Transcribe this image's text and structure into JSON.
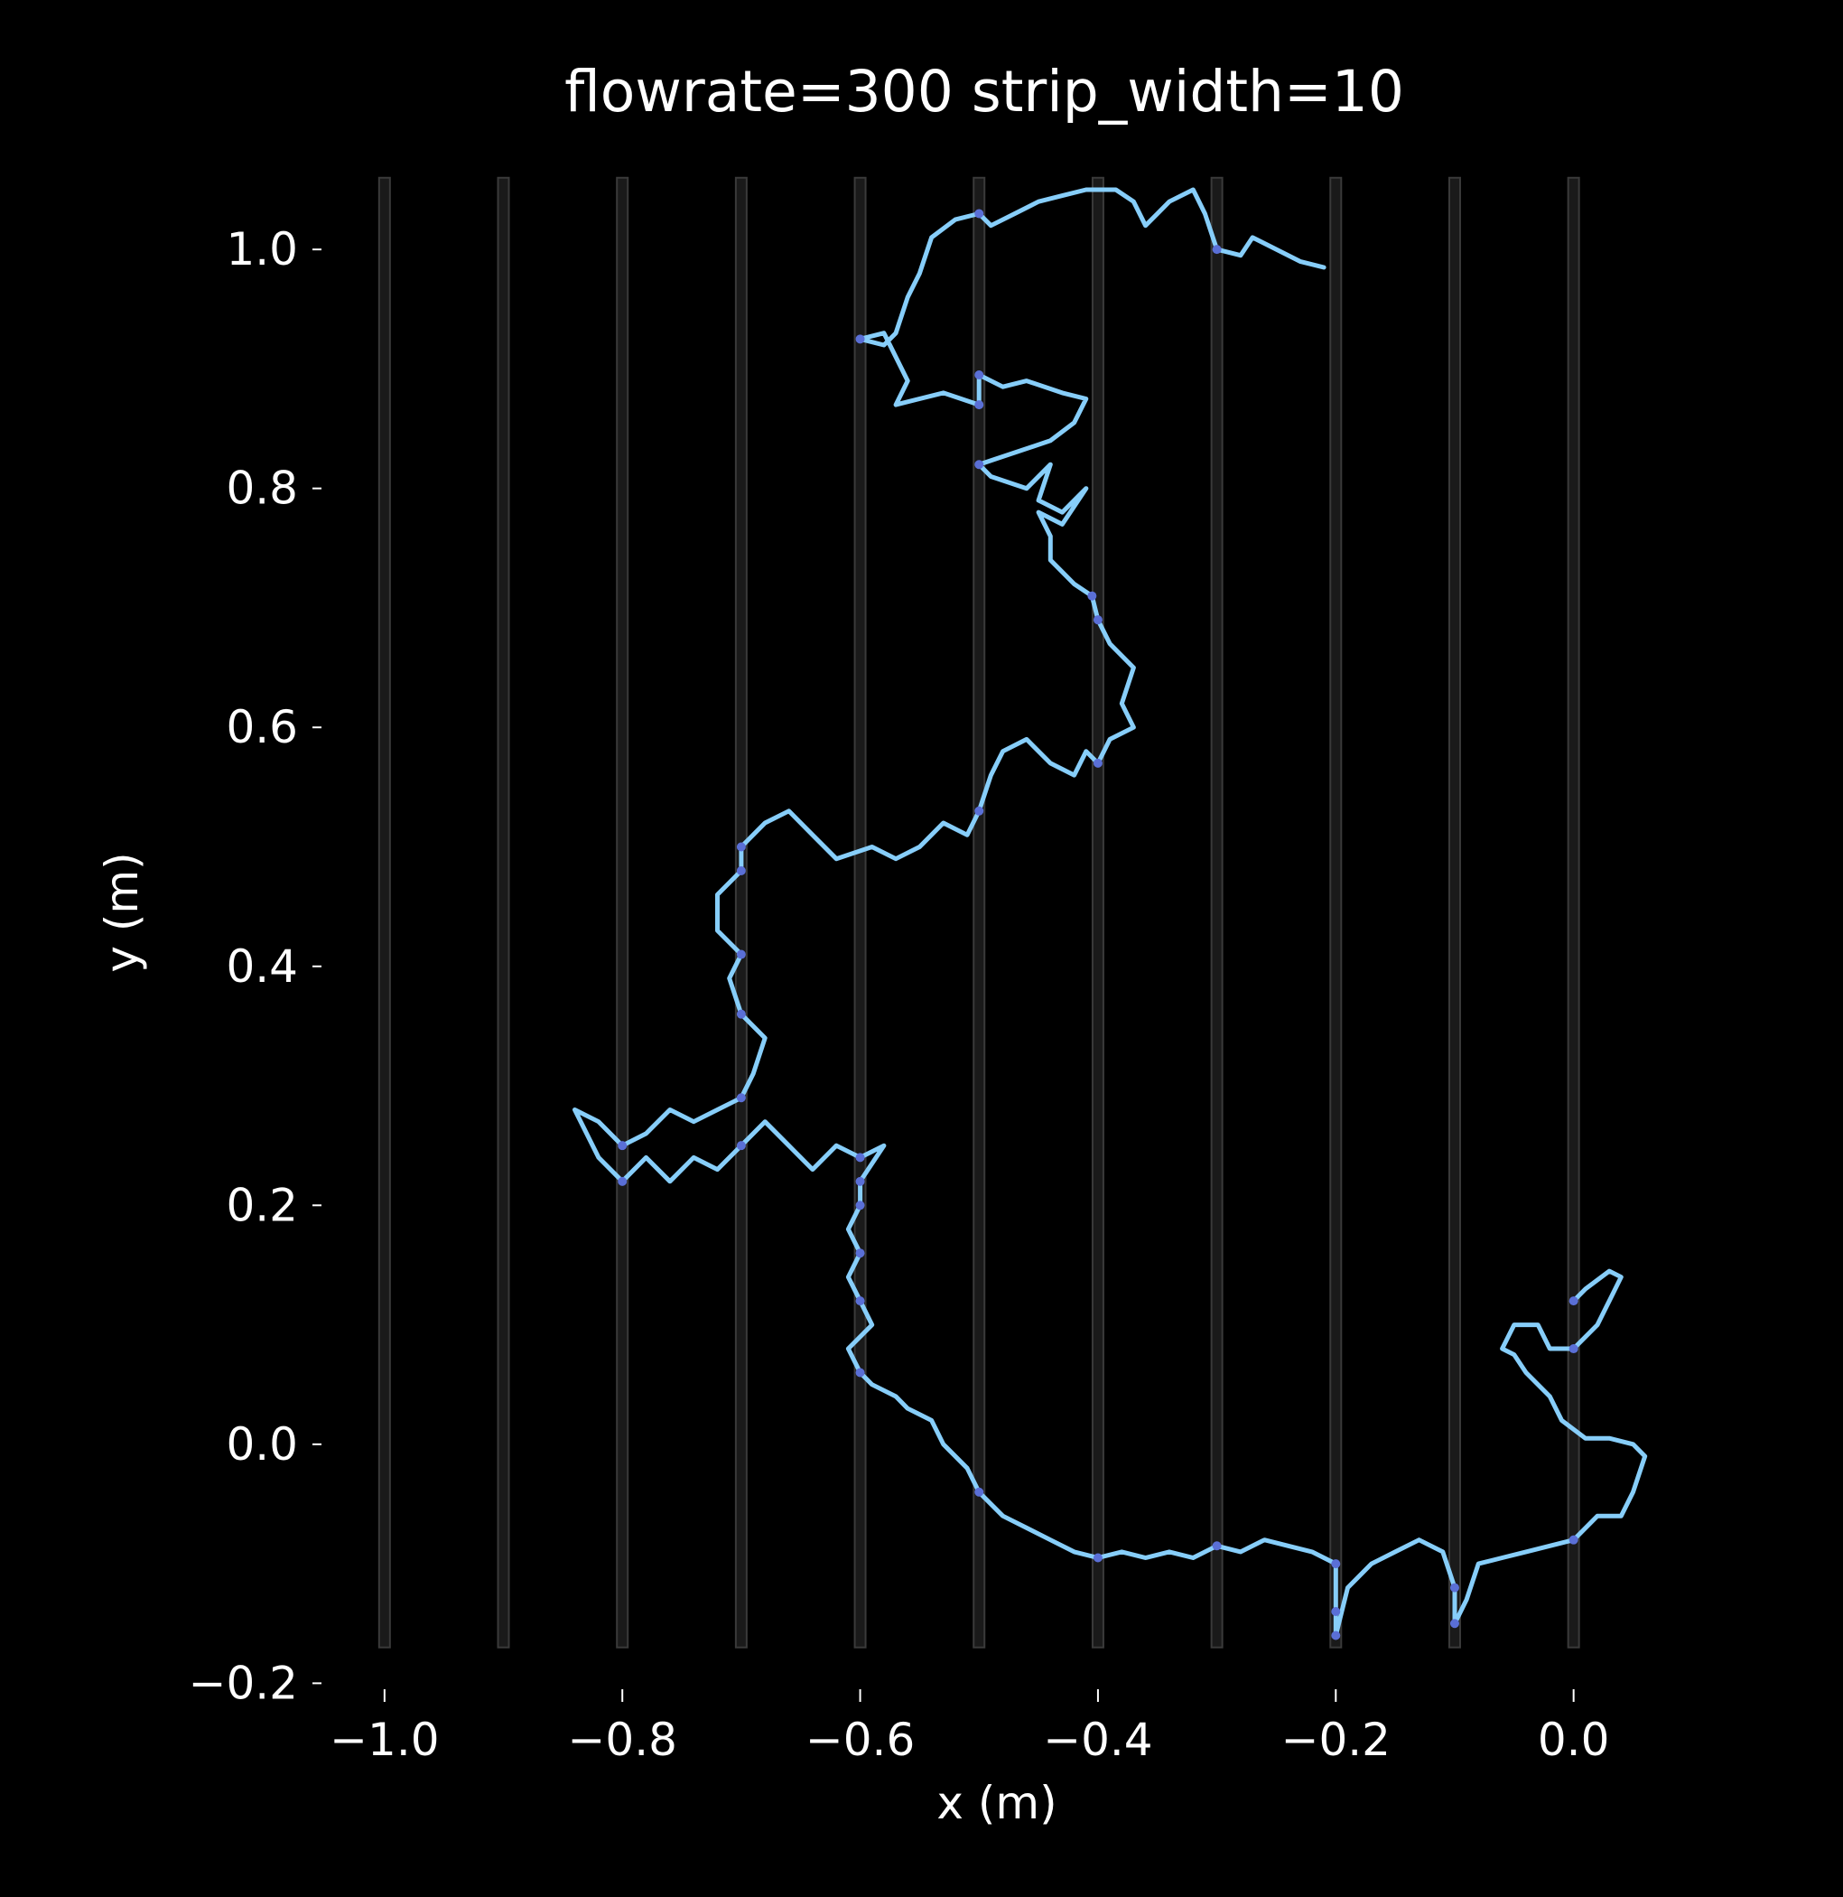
{
  "chart_data": {
    "type": "line",
    "title": "flowrate=300 strip_width=10",
    "xlabel": "x (m)",
    "ylabel": "y (m)",
    "xlim": [
      -1.05,
      0.08
    ],
    "ylim": [
      -0.205,
      1.05
    ],
    "xticks": [
      -1.0,
      -0.8,
      -0.6,
      -0.4,
      -0.2,
      0.0
    ],
    "xtick_labels": [
      "−1.0",
      "−0.8",
      "−0.6",
      "−0.4",
      "−0.2",
      "0.0"
    ],
    "yticks": [
      -0.2,
      0.0,
      0.2,
      0.4,
      0.6,
      0.8,
      1.0
    ],
    "ytick_labels": [
      "−0.2",
      "0.0",
      "0.2",
      "0.4",
      "0.6",
      "0.8",
      "1.0"
    ],
    "grid": false,
    "strips": {
      "x": [
        -1.0,
        -0.9,
        -0.8,
        -0.7,
        -0.6,
        -0.5,
        -0.4,
        -0.3,
        -0.2,
        -0.1,
        0.0
      ],
      "y_range": [
        -0.17,
        1.06
      ],
      "color": "#3a3a3a"
    },
    "series": [
      {
        "color": "#87cefa",
        "highlight_color": "#5a6fd6",
        "points": [
          [
            -0.21,
            0.985
          ],
          [
            -0.23,
            0.99
          ],
          [
            -0.25,
            1.0
          ],
          [
            -0.27,
            1.01
          ],
          [
            -0.28,
            0.995
          ],
          [
            -0.3,
            1.0
          ],
          [
            -0.31,
            1.03
          ],
          [
            -0.32,
            1.05
          ],
          [
            -0.34,
            1.04
          ],
          [
            -0.35,
            1.03
          ],
          [
            -0.36,
            1.02
          ],
          [
            -0.37,
            1.04
          ],
          [
            -0.385,
            1.05
          ],
          [
            -0.41,
            1.05
          ],
          [
            -0.43,
            1.045
          ],
          [
            -0.45,
            1.04
          ],
          [
            -0.47,
            1.03
          ],
          [
            -0.49,
            1.02
          ],
          [
            -0.5,
            1.03
          ],
          [
            -0.52,
            1.025
          ],
          [
            -0.54,
            1.01
          ],
          [
            -0.55,
            0.98
          ],
          [
            -0.56,
            0.96
          ],
          [
            -0.57,
            0.93
          ],
          [
            -0.58,
            0.92
          ],
          [
            -0.6,
            0.925
          ],
          [
            -0.58,
            0.93
          ],
          [
            -0.57,
            0.91
          ],
          [
            -0.56,
            0.89
          ],
          [
            -0.57,
            0.87
          ],
          [
            -0.53,
            0.88
          ],
          [
            -0.5,
            0.87
          ],
          [
            -0.5,
            0.895
          ],
          [
            -0.48,
            0.885
          ],
          [
            -0.46,
            0.89
          ],
          [
            -0.43,
            0.88
          ],
          [
            -0.41,
            0.875
          ],
          [
            -0.42,
            0.855
          ],
          [
            -0.44,
            0.84
          ],
          [
            -0.47,
            0.83
          ],
          [
            -0.5,
            0.82
          ],
          [
            -0.49,
            0.81
          ],
          [
            -0.46,
            0.8
          ],
          [
            -0.44,
            0.82
          ],
          [
            -0.45,
            0.79
          ],
          [
            -0.43,
            0.78
          ],
          [
            -0.41,
            0.8
          ],
          [
            -0.43,
            0.77
          ],
          [
            -0.45,
            0.78
          ],
          [
            -0.44,
            0.76
          ],
          [
            -0.44,
            0.74
          ],
          [
            -0.42,
            0.72
          ],
          [
            -0.405,
            0.71
          ],
          [
            -0.4,
            0.69
          ],
          [
            -0.39,
            0.67
          ],
          [
            -0.37,
            0.65
          ],
          [
            -0.38,
            0.62
          ],
          [
            -0.37,
            0.6
          ],
          [
            -0.39,
            0.59
          ],
          [
            -0.4,
            0.57
          ],
          [
            -0.41,
            0.58
          ],
          [
            -0.42,
            0.56
          ],
          [
            -0.44,
            0.57
          ],
          [
            -0.46,
            0.59
          ],
          [
            -0.48,
            0.58
          ],
          [
            -0.49,
            0.56
          ],
          [
            -0.5,
            0.53
          ],
          [
            -0.51,
            0.51
          ],
          [
            -0.53,
            0.52
          ],
          [
            -0.55,
            0.5
          ],
          [
            -0.57,
            0.49
          ],
          [
            -0.59,
            0.5
          ],
          [
            -0.62,
            0.49
          ],
          [
            -0.64,
            0.51
          ],
          [
            -0.66,
            0.53
          ],
          [
            -0.68,
            0.52
          ],
          [
            -0.7,
            0.5
          ],
          [
            -0.7,
            0.48
          ],
          [
            -0.72,
            0.46
          ],
          [
            -0.72,
            0.43
          ],
          [
            -0.7,
            0.41
          ],
          [
            -0.71,
            0.39
          ],
          [
            -0.7,
            0.36
          ],
          [
            -0.68,
            0.34
          ],
          [
            -0.69,
            0.31
          ],
          [
            -0.7,
            0.29
          ],
          [
            -0.72,
            0.28
          ],
          [
            -0.74,
            0.27
          ],
          [
            -0.76,
            0.28
          ],
          [
            -0.78,
            0.26
          ],
          [
            -0.8,
            0.25
          ],
          [
            -0.82,
            0.27
          ],
          [
            -0.84,
            0.28
          ],
          [
            -0.82,
            0.24
          ],
          [
            -0.8,
            0.22
          ],
          [
            -0.78,
            0.24
          ],
          [
            -0.76,
            0.22
          ],
          [
            -0.74,
            0.24
          ],
          [
            -0.72,
            0.23
          ],
          [
            -0.7,
            0.25
          ],
          [
            -0.68,
            0.27
          ],
          [
            -0.66,
            0.25
          ],
          [
            -0.64,
            0.23
          ],
          [
            -0.62,
            0.25
          ],
          [
            -0.6,
            0.24
          ],
          [
            -0.58,
            0.25
          ],
          [
            -0.6,
            0.22
          ],
          [
            -0.6,
            0.2
          ],
          [
            -0.61,
            0.18
          ],
          [
            -0.6,
            0.16
          ],
          [
            -0.61,
            0.14
          ],
          [
            -0.6,
            0.12
          ],
          [
            -0.59,
            0.1
          ],
          [
            -0.61,
            0.08
          ],
          [
            -0.6,
            0.06
          ],
          [
            -0.59,
            0.05
          ],
          [
            -0.57,
            0.04
          ],
          [
            -0.56,
            0.03
          ],
          [
            -0.54,
            0.02
          ],
          [
            -0.53,
            0.0
          ],
          [
            -0.51,
            -0.02
          ],
          [
            -0.5,
            -0.04
          ],
          [
            -0.48,
            -0.06
          ],
          [
            -0.46,
            -0.07
          ],
          [
            -0.44,
            -0.08
          ],
          [
            -0.42,
            -0.09
          ],
          [
            -0.4,
            -0.095
          ],
          [
            -0.38,
            -0.09
          ],
          [
            -0.36,
            -0.095
          ],
          [
            -0.34,
            -0.09
          ],
          [
            -0.32,
            -0.095
          ],
          [
            -0.3,
            -0.085
          ],
          [
            -0.28,
            -0.09
          ],
          [
            -0.26,
            -0.08
          ],
          [
            -0.24,
            -0.085
          ],
          [
            -0.22,
            -0.09
          ],
          [
            -0.2,
            -0.1
          ],
          [
            -0.2,
            -0.14
          ],
          [
            -0.2,
            -0.16
          ],
          [
            -0.19,
            -0.12
          ],
          [
            -0.17,
            -0.1
          ],
          [
            -0.15,
            -0.09
          ],
          [
            -0.13,
            -0.08
          ],
          [
            -0.11,
            -0.09
          ],
          [
            -0.1,
            -0.12
          ],
          [
            -0.1,
            -0.15
          ],
          [
            -0.09,
            -0.13
          ],
          [
            -0.08,
            -0.1
          ],
          [
            -0.06,
            -0.095
          ],
          [
            -0.04,
            -0.09
          ],
          [
            -0.02,
            -0.085
          ],
          [
            0.0,
            -0.08
          ],
          [
            0.02,
            -0.06
          ],
          [
            0.04,
            -0.06
          ],
          [
            0.05,
            -0.04
          ],
          [
            0.06,
            -0.01
          ],
          [
            0.05,
            0.0
          ],
          [
            0.03,
            0.005
          ],
          [
            0.01,
            0.005
          ],
          [
            -0.01,
            0.02
          ],
          [
            -0.02,
            0.04
          ],
          [
            -0.04,
            0.06
          ],
          [
            -0.05,
            0.075
          ],
          [
            -0.06,
            0.08
          ],
          [
            -0.05,
            0.1
          ],
          [
            -0.03,
            0.1
          ],
          [
            -0.02,
            0.08
          ],
          [
            0.0,
            0.08
          ],
          [
            0.02,
            0.1
          ],
          [
            0.03,
            0.12
          ],
          [
            0.04,
            0.14
          ],
          [
            0.03,
            0.145
          ],
          [
            0.01,
            0.13
          ],
          [
            0.0,
            0.12
          ]
        ]
      }
    ]
  }
}
